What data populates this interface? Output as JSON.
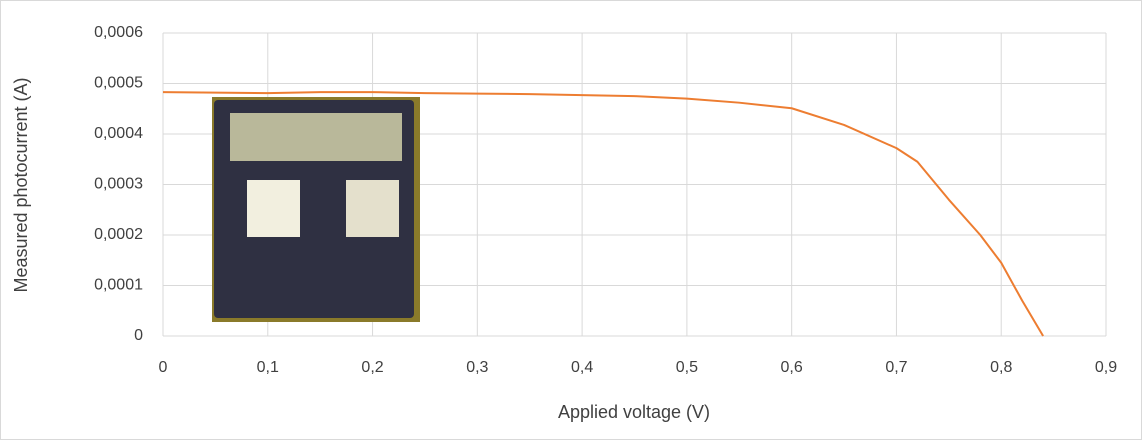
{
  "chart_data": {
    "type": "line",
    "x_label": "Applied voltage (V)",
    "y_label": "Measured photocurrent (A)",
    "x": [
      0,
      0.05,
      0.1,
      0.15,
      0.2,
      0.25,
      0.3,
      0.35,
      0.4,
      0.45,
      0.5,
      0.55,
      0.6,
      0.65,
      0.7,
      0.72,
      0.75,
      0.78,
      0.8,
      0.82,
      0.84
    ],
    "series": [
      {
        "color": "#ed7d31",
        "values": [
          0.000483,
          0.000482,
          0.000481,
          0.000483,
          0.000483,
          0.000481,
          0.00048,
          0.000479,
          0.000477,
          0.000475,
          0.00047,
          0.000462,
          0.000451,
          0.000418,
          0.000372,
          0.000345,
          0.00027,
          0.0002,
          0.000145,
          7e-05,
          0
        ]
      }
    ],
    "xlim": [
      0,
      0.9
    ],
    "ylim": [
      0,
      0.0006
    ],
    "xticks": [
      0,
      {
        "value": 0.1,
        "label": "0,1"
      },
      {
        "value": 0.2,
        "label": "0,2"
      },
      {
        "value": 0.3,
        "label": "0,3"
      },
      {
        "value": 0.4,
        "label": "0,4"
      },
      {
        "value": 0.5,
        "label": "0,5"
      },
      {
        "value": 0.6,
        "label": "0,6"
      },
      {
        "value": 0.7,
        "label": "0,7"
      },
      {
        "value": 0.8,
        "label": "0,8"
      },
      {
        "value": 0.9,
        "label": "0,9"
      }
    ],
    "yticks": [
      0,
      {
        "value": 0.0001,
        "label": "0,0001"
      },
      {
        "value": 0.0002,
        "label": "0,0002"
      },
      {
        "value": 0.0003,
        "label": "0,0003"
      },
      {
        "value": 0.0004,
        "label": "0,0004"
      },
      {
        "value": 0.0005,
        "label": "0,0005"
      },
      {
        "value": 0.0006,
        "label": "0,0006"
      }
    ],
    "grid": true
  }
}
